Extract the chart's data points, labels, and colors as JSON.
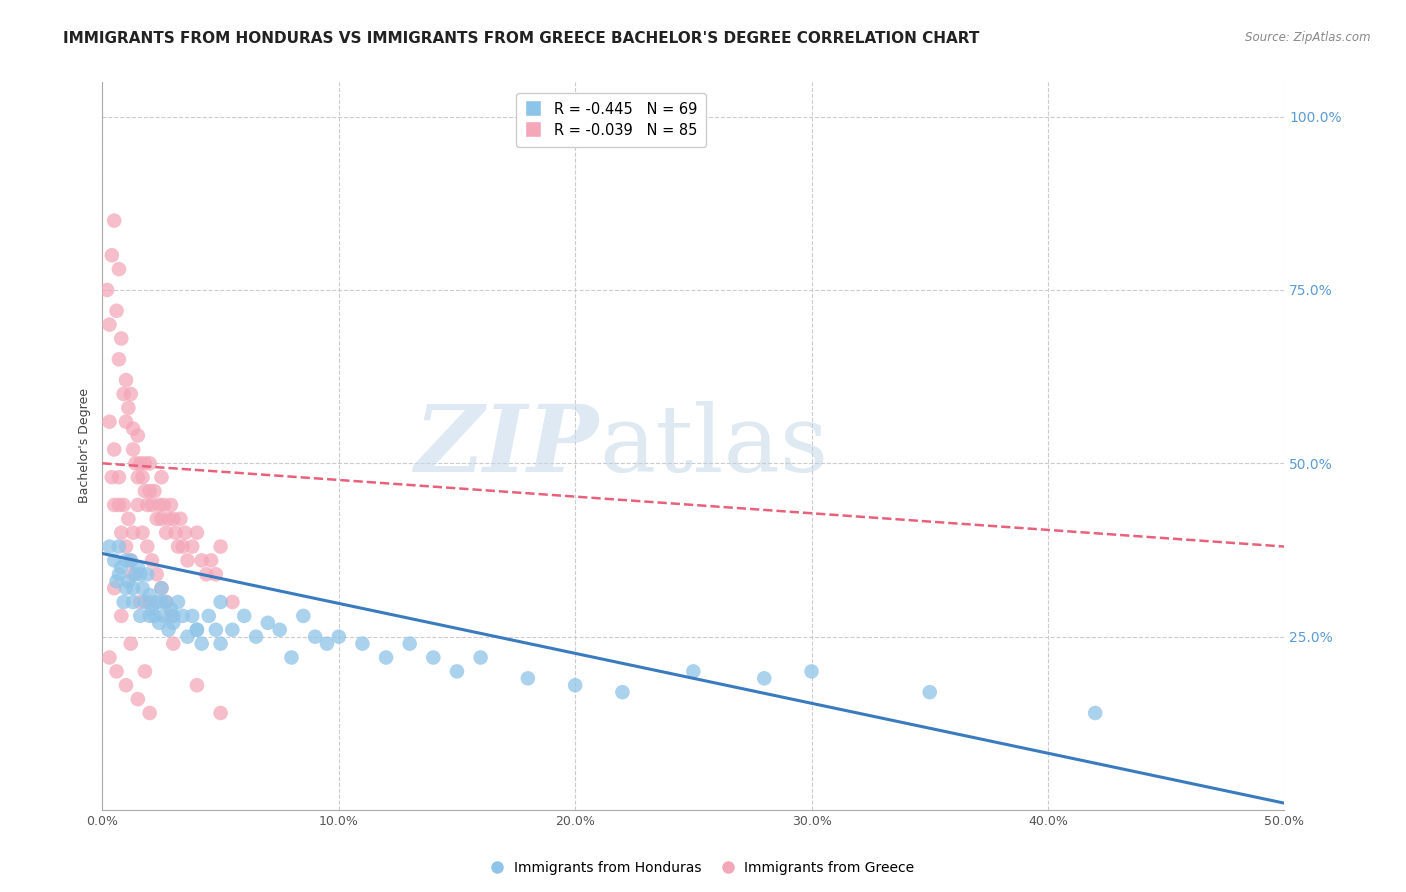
{
  "title": "IMMIGRANTS FROM HONDURAS VS IMMIGRANTS FROM GREECE BACHELOR'S DEGREE CORRELATION CHART",
  "source": "Source: ZipAtlas.com",
  "ylabel": "Bachelor's Degree",
  "right_yticks": [
    "100.0%",
    "75.0%",
    "50.0%",
    "25.0%"
  ],
  "right_ytick_vals": [
    1.0,
    0.75,
    0.5,
    0.25
  ],
  "xlim": [
    0.0,
    0.5
  ],
  "ylim": [
    0.0,
    1.05
  ],
  "legend_blue_r": "R = -0.445",
  "legend_blue_n": "N = 69",
  "legend_pink_r": "R = -0.039",
  "legend_pink_n": "N = 85",
  "legend_blue_label": "Immigrants from Honduras",
  "legend_pink_label": "Immigrants from Greece",
  "watermark_zip": "ZIP",
  "watermark_atlas": "atlas",
  "blue_color": "#8ec4e8",
  "pink_color": "#f4a7b9",
  "blue_line_color": "#3a7abf",
  "pink_line_color": "#e8607a",
  "blue_points_x": [
    0.003,
    0.005,
    0.006,
    0.007,
    0.008,
    0.009,
    0.01,
    0.011,
    0.012,
    0.013,
    0.014,
    0.015,
    0.016,
    0.017,
    0.018,
    0.019,
    0.02,
    0.021,
    0.022,
    0.023,
    0.024,
    0.025,
    0.026,
    0.027,
    0.028,
    0.029,
    0.03,
    0.032,
    0.034,
    0.036,
    0.038,
    0.04,
    0.042,
    0.045,
    0.048,
    0.05,
    0.055,
    0.06,
    0.065,
    0.07,
    0.075,
    0.08,
    0.085,
    0.09,
    0.095,
    0.1,
    0.11,
    0.12,
    0.13,
    0.14,
    0.15,
    0.16,
    0.18,
    0.2,
    0.22,
    0.25,
    0.28,
    0.3,
    0.35,
    0.42,
    0.007,
    0.01,
    0.013,
    0.016,
    0.02,
    0.025,
    0.03,
    0.04,
    0.05
  ],
  "blue_points_y": [
    0.38,
    0.36,
    0.33,
    0.34,
    0.35,
    0.3,
    0.32,
    0.33,
    0.36,
    0.3,
    0.34,
    0.35,
    0.28,
    0.32,
    0.3,
    0.34,
    0.31,
    0.29,
    0.28,
    0.3,
    0.27,
    0.32,
    0.28,
    0.3,
    0.26,
    0.29,
    0.27,
    0.3,
    0.28,
    0.25,
    0.28,
    0.26,
    0.24,
    0.28,
    0.26,
    0.3,
    0.26,
    0.28,
    0.25,
    0.27,
    0.26,
    0.22,
    0.28,
    0.25,
    0.24,
    0.25,
    0.24,
    0.22,
    0.24,
    0.22,
    0.2,
    0.22,
    0.19,
    0.18,
    0.17,
    0.2,
    0.19,
    0.2,
    0.17,
    0.14,
    0.38,
    0.36,
    0.32,
    0.34,
    0.28,
    0.3,
    0.28,
    0.26,
    0.24
  ],
  "pink_points_x": [
    0.002,
    0.003,
    0.004,
    0.005,
    0.006,
    0.007,
    0.007,
    0.008,
    0.009,
    0.01,
    0.01,
    0.011,
    0.012,
    0.013,
    0.013,
    0.014,
    0.015,
    0.015,
    0.016,
    0.017,
    0.018,
    0.018,
    0.019,
    0.02,
    0.02,
    0.021,
    0.022,
    0.023,
    0.024,
    0.025,
    0.025,
    0.026,
    0.027,
    0.028,
    0.029,
    0.03,
    0.031,
    0.032,
    0.033,
    0.034,
    0.035,
    0.036,
    0.038,
    0.04,
    0.042,
    0.044,
    0.046,
    0.048,
    0.05,
    0.055,
    0.003,
    0.005,
    0.007,
    0.009,
    0.011,
    0.013,
    0.015,
    0.017,
    0.019,
    0.021,
    0.023,
    0.025,
    0.027,
    0.029,
    0.005,
    0.008,
    0.01,
    0.013,
    0.016,
    0.003,
    0.006,
    0.01,
    0.015,
    0.02,
    0.005,
    0.008,
    0.012,
    0.018,
    0.004,
    0.007,
    0.012,
    0.02,
    0.03,
    0.04,
    0.05
  ],
  "pink_points_y": [
    0.75,
    0.7,
    0.8,
    0.85,
    0.72,
    0.78,
    0.65,
    0.68,
    0.6,
    0.62,
    0.56,
    0.58,
    0.6,
    0.52,
    0.55,
    0.5,
    0.54,
    0.48,
    0.5,
    0.48,
    0.5,
    0.46,
    0.44,
    0.5,
    0.46,
    0.44,
    0.46,
    0.42,
    0.44,
    0.48,
    0.42,
    0.44,
    0.4,
    0.42,
    0.44,
    0.42,
    0.4,
    0.38,
    0.42,
    0.38,
    0.4,
    0.36,
    0.38,
    0.4,
    0.36,
    0.34,
    0.36,
    0.34,
    0.38,
    0.3,
    0.56,
    0.52,
    0.48,
    0.44,
    0.42,
    0.4,
    0.44,
    0.4,
    0.38,
    0.36,
    0.34,
    0.32,
    0.3,
    0.28,
    0.44,
    0.4,
    0.38,
    0.34,
    0.3,
    0.22,
    0.2,
    0.18,
    0.16,
    0.14,
    0.32,
    0.28,
    0.24,
    0.2,
    0.48,
    0.44,
    0.36,
    0.3,
    0.24,
    0.18,
    0.14
  ],
  "blue_trendline_x": [
    0.0,
    0.5
  ],
  "blue_trendline_y": [
    0.37,
    0.01
  ],
  "pink_trendline_x": [
    0.0,
    0.5
  ],
  "pink_trendline_y": [
    0.5,
    0.38
  ],
  "grid_color": "#cccccc",
  "background_color": "#ffffff",
  "title_fontsize": 11,
  "axis_fontsize": 9,
  "tick_fontsize": 9,
  "right_tick_color": "#5b9bd5",
  "xtick_vals": [
    0.0,
    0.1,
    0.2,
    0.3,
    0.4,
    0.5
  ],
  "xtick_labels": [
    "0.0%",
    "10.0%",
    "20.0%",
    "30.0%",
    "40.0%",
    "50.0%"
  ]
}
